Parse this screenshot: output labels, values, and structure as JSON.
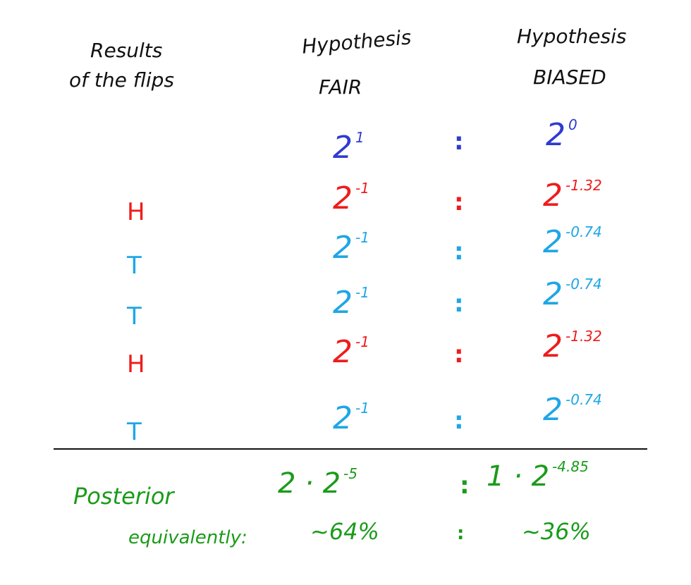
{
  "headers": {
    "results_line1": "Results",
    "results_line2": "of the flips",
    "fair_line1": "Hypothesis",
    "fair_line2": "FAIR",
    "biased_line1": "Hypothesis",
    "biased_line2": "BIASED"
  },
  "prior": {
    "fair_base": "2",
    "fair_exp": "1",
    "sep": ":",
    "biased_base": "2",
    "biased_exp": "0"
  },
  "rows": [
    {
      "flip": "H",
      "fair_base": "2",
      "fair_exp": "-1",
      "sep": ":",
      "biased_base": "2",
      "biased_exp": "-1.32"
    },
    {
      "flip": "T",
      "fair_base": "2",
      "fair_exp": "-1",
      "sep": ":",
      "biased_base": "2",
      "biased_exp": "-0.74"
    },
    {
      "flip": "T",
      "fair_base": "2",
      "fair_exp": "-1",
      "sep": ":",
      "biased_base": "2",
      "biased_exp": "-0.74"
    },
    {
      "flip": "H",
      "fair_base": "2",
      "fair_exp": "-1",
      "sep": ":",
      "biased_base": "2",
      "biased_exp": "-1.32"
    },
    {
      "flip": "T",
      "fair_base": "2",
      "fair_exp": "-1",
      "sep": ":",
      "biased_base": "2",
      "biased_exp": "-0.74"
    }
  ],
  "posterior": {
    "label": "Posterior",
    "fair_coef": "2 · 2",
    "fair_exp": "-5",
    "sep": ":",
    "biased_coef": "1 · 2",
    "biased_exp": "-4.85"
  },
  "equivalently": {
    "label": "equivalently:",
    "fair": "~64%",
    "sep": ":",
    "biased": "~36%"
  },
  "colors": {
    "prior": "#2f3bd0",
    "heads": "#ee1c1c",
    "tails": "#1ea6e6",
    "posterior": "#1a9b1a",
    "text": "#111111"
  }
}
